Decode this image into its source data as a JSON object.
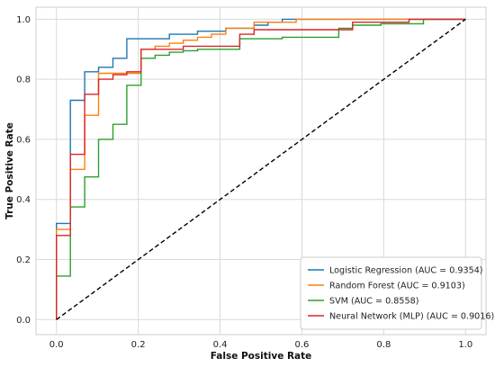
{
  "chart_data": {
    "type": "line",
    "title": "",
    "xlabel": "False Positive Rate",
    "ylabel": "True Positive Rate",
    "xlim": [
      -0.05,
      1.05
    ],
    "ylim": [
      -0.05,
      1.04
    ],
    "xticks": [
      "0.0",
      "0.2",
      "0.4",
      "0.6",
      "0.8",
      "1.0"
    ],
    "yticks": [
      "0.0",
      "0.2",
      "0.4",
      "0.6",
      "0.8",
      "1.0"
    ],
    "grid": true,
    "legend_position": "lower-right",
    "series": [
      {
        "name": "Logistic Regression (AUC = 0.9354)",
        "color": "#1f77b4",
        "x": [
          0,
          0,
          0.034,
          0.034,
          0.069,
          0.069,
          0.103,
          0.103,
          0.138,
          0.138,
          0.172,
          0.172,
          0.276,
          0.276,
          0.345,
          0.345,
          0.414,
          0.414,
          0.483,
          0.483,
          0.517,
          0.517,
          0.552,
          0.552,
          1.0
        ],
        "y": [
          0,
          0.32,
          0.32,
          0.73,
          0.73,
          0.825,
          0.825,
          0.84,
          0.84,
          0.87,
          0.87,
          0.935,
          0.935,
          0.95,
          0.95,
          0.96,
          0.96,
          0.97,
          0.97,
          0.98,
          0.98,
          0.99,
          0.99,
          1.0,
          1.0
        ]
      },
      {
        "name": "Random Forest (AUC = 0.9103)",
        "color": "#ff7f0e",
        "x": [
          0,
          0,
          0.034,
          0.034,
          0.069,
          0.069,
          0.103,
          0.103,
          0.207,
          0.207,
          0.241,
          0.241,
          0.276,
          0.276,
          0.31,
          0.31,
          0.345,
          0.345,
          0.379,
          0.379,
          0.414,
          0.414,
          0.483,
          0.483,
          0.586,
          0.586,
          1.0
        ],
        "y": [
          0,
          0.3,
          0.3,
          0.5,
          0.5,
          0.68,
          0.68,
          0.82,
          0.82,
          0.9,
          0.9,
          0.91,
          0.91,
          0.92,
          0.92,
          0.93,
          0.93,
          0.94,
          0.94,
          0.95,
          0.95,
          0.97,
          0.97,
          0.99,
          0.99,
          1.0,
          1.0
        ]
      },
      {
        "name": "SVM (AUC = 0.8558)",
        "color": "#2ca02c",
        "x": [
          0,
          0,
          0.034,
          0.034,
          0.069,
          0.069,
          0.103,
          0.103,
          0.138,
          0.138,
          0.172,
          0.172,
          0.207,
          0.207,
          0.241,
          0.241,
          0.276,
          0.276,
          0.31,
          0.31,
          0.345,
          0.345,
          0.448,
          0.448,
          0.552,
          0.552,
          0.69,
          0.69,
          0.724,
          0.724,
          0.793,
          0.793,
          0.897,
          0.897,
          1.0
        ],
        "y": [
          0,
          0.145,
          0.145,
          0.375,
          0.375,
          0.475,
          0.475,
          0.6,
          0.6,
          0.65,
          0.65,
          0.78,
          0.78,
          0.87,
          0.87,
          0.88,
          0.88,
          0.89,
          0.89,
          0.895,
          0.895,
          0.9,
          0.9,
          0.935,
          0.935,
          0.94,
          0.94,
          0.97,
          0.97,
          0.98,
          0.98,
          0.985,
          0.985,
          1.0,
          1.0
        ]
      },
      {
        "name": "Neural Network (MLP) (AUC = 0.9016)",
        "color": "#d62728",
        "x": [
          0,
          0,
          0.034,
          0.034,
          0.069,
          0.069,
          0.103,
          0.103,
          0.138,
          0.138,
          0.172,
          0.172,
          0.207,
          0.207,
          0.31,
          0.31,
          0.448,
          0.448,
          0.483,
          0.483,
          0.724,
          0.724,
          0.862,
          0.862,
          1.0
        ],
        "y": [
          0,
          0.28,
          0.28,
          0.55,
          0.55,
          0.75,
          0.75,
          0.8,
          0.8,
          0.815,
          0.815,
          0.825,
          0.825,
          0.9,
          0.9,
          0.91,
          0.91,
          0.95,
          0.95,
          0.965,
          0.965,
          0.99,
          0.99,
          1.0,
          1.0
        ]
      },
      {
        "name": "",
        "color": "#000000",
        "dashed": true,
        "x": [
          0,
          1
        ],
        "y": [
          0,
          1
        ]
      }
    ]
  }
}
